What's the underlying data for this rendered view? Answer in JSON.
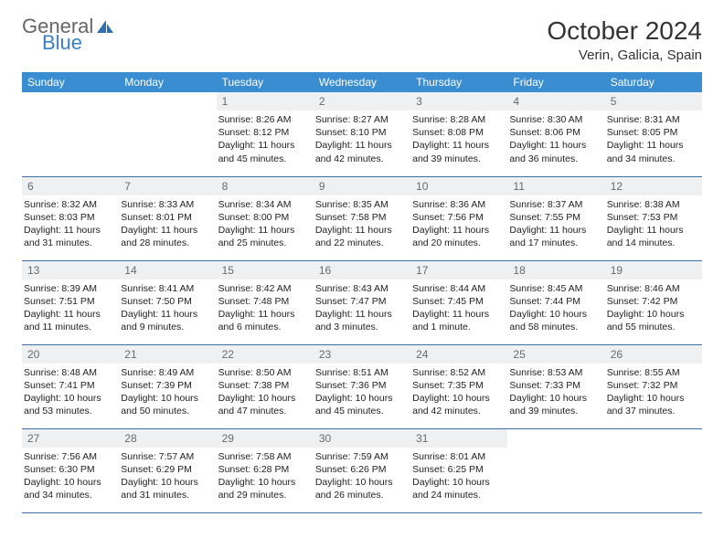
{
  "brand": {
    "part1": "General",
    "part2": "Blue"
  },
  "title": "October 2024",
  "location": "Verin, Galicia, Spain",
  "colors": {
    "header_bg": "#3a8dd0",
    "header_text": "#ffffff",
    "daynum_bg": "#eef0f2",
    "daynum_text": "#6a6a6a",
    "border": "#3a6fa8",
    "logo_accent": "#3a7fc4"
  },
  "day_names": [
    "Sunday",
    "Monday",
    "Tuesday",
    "Wednesday",
    "Thursday",
    "Friday",
    "Saturday"
  ],
  "weeks": [
    [
      {
        "n": "",
        "sunrise": "",
        "sunset": "",
        "daylight": ""
      },
      {
        "n": "",
        "sunrise": "",
        "sunset": "",
        "daylight": ""
      },
      {
        "n": "1",
        "sunrise": "Sunrise: 8:26 AM",
        "sunset": "Sunset: 8:12 PM",
        "daylight": "Daylight: 11 hours and 45 minutes."
      },
      {
        "n": "2",
        "sunrise": "Sunrise: 8:27 AM",
        "sunset": "Sunset: 8:10 PM",
        "daylight": "Daylight: 11 hours and 42 minutes."
      },
      {
        "n": "3",
        "sunrise": "Sunrise: 8:28 AM",
        "sunset": "Sunset: 8:08 PM",
        "daylight": "Daylight: 11 hours and 39 minutes."
      },
      {
        "n": "4",
        "sunrise": "Sunrise: 8:30 AM",
        "sunset": "Sunset: 8:06 PM",
        "daylight": "Daylight: 11 hours and 36 minutes."
      },
      {
        "n": "5",
        "sunrise": "Sunrise: 8:31 AM",
        "sunset": "Sunset: 8:05 PM",
        "daylight": "Daylight: 11 hours and 34 minutes."
      }
    ],
    [
      {
        "n": "6",
        "sunrise": "Sunrise: 8:32 AM",
        "sunset": "Sunset: 8:03 PM",
        "daylight": "Daylight: 11 hours and 31 minutes."
      },
      {
        "n": "7",
        "sunrise": "Sunrise: 8:33 AM",
        "sunset": "Sunset: 8:01 PM",
        "daylight": "Daylight: 11 hours and 28 minutes."
      },
      {
        "n": "8",
        "sunrise": "Sunrise: 8:34 AM",
        "sunset": "Sunset: 8:00 PM",
        "daylight": "Daylight: 11 hours and 25 minutes."
      },
      {
        "n": "9",
        "sunrise": "Sunrise: 8:35 AM",
        "sunset": "Sunset: 7:58 PM",
        "daylight": "Daylight: 11 hours and 22 minutes."
      },
      {
        "n": "10",
        "sunrise": "Sunrise: 8:36 AM",
        "sunset": "Sunset: 7:56 PM",
        "daylight": "Daylight: 11 hours and 20 minutes."
      },
      {
        "n": "11",
        "sunrise": "Sunrise: 8:37 AM",
        "sunset": "Sunset: 7:55 PM",
        "daylight": "Daylight: 11 hours and 17 minutes."
      },
      {
        "n": "12",
        "sunrise": "Sunrise: 8:38 AM",
        "sunset": "Sunset: 7:53 PM",
        "daylight": "Daylight: 11 hours and 14 minutes."
      }
    ],
    [
      {
        "n": "13",
        "sunrise": "Sunrise: 8:39 AM",
        "sunset": "Sunset: 7:51 PM",
        "daylight": "Daylight: 11 hours and 11 minutes."
      },
      {
        "n": "14",
        "sunrise": "Sunrise: 8:41 AM",
        "sunset": "Sunset: 7:50 PM",
        "daylight": "Daylight: 11 hours and 9 minutes."
      },
      {
        "n": "15",
        "sunrise": "Sunrise: 8:42 AM",
        "sunset": "Sunset: 7:48 PM",
        "daylight": "Daylight: 11 hours and 6 minutes."
      },
      {
        "n": "16",
        "sunrise": "Sunrise: 8:43 AM",
        "sunset": "Sunset: 7:47 PM",
        "daylight": "Daylight: 11 hours and 3 minutes."
      },
      {
        "n": "17",
        "sunrise": "Sunrise: 8:44 AM",
        "sunset": "Sunset: 7:45 PM",
        "daylight": "Daylight: 11 hours and 1 minute."
      },
      {
        "n": "18",
        "sunrise": "Sunrise: 8:45 AM",
        "sunset": "Sunset: 7:44 PM",
        "daylight": "Daylight: 10 hours and 58 minutes."
      },
      {
        "n": "19",
        "sunrise": "Sunrise: 8:46 AM",
        "sunset": "Sunset: 7:42 PM",
        "daylight": "Daylight: 10 hours and 55 minutes."
      }
    ],
    [
      {
        "n": "20",
        "sunrise": "Sunrise: 8:48 AM",
        "sunset": "Sunset: 7:41 PM",
        "daylight": "Daylight: 10 hours and 53 minutes."
      },
      {
        "n": "21",
        "sunrise": "Sunrise: 8:49 AM",
        "sunset": "Sunset: 7:39 PM",
        "daylight": "Daylight: 10 hours and 50 minutes."
      },
      {
        "n": "22",
        "sunrise": "Sunrise: 8:50 AM",
        "sunset": "Sunset: 7:38 PM",
        "daylight": "Daylight: 10 hours and 47 minutes."
      },
      {
        "n": "23",
        "sunrise": "Sunrise: 8:51 AM",
        "sunset": "Sunset: 7:36 PM",
        "daylight": "Daylight: 10 hours and 45 minutes."
      },
      {
        "n": "24",
        "sunrise": "Sunrise: 8:52 AM",
        "sunset": "Sunset: 7:35 PM",
        "daylight": "Daylight: 10 hours and 42 minutes."
      },
      {
        "n": "25",
        "sunrise": "Sunrise: 8:53 AM",
        "sunset": "Sunset: 7:33 PM",
        "daylight": "Daylight: 10 hours and 39 minutes."
      },
      {
        "n": "26",
        "sunrise": "Sunrise: 8:55 AM",
        "sunset": "Sunset: 7:32 PM",
        "daylight": "Daylight: 10 hours and 37 minutes."
      }
    ],
    [
      {
        "n": "27",
        "sunrise": "Sunrise: 7:56 AM",
        "sunset": "Sunset: 6:30 PM",
        "daylight": "Daylight: 10 hours and 34 minutes."
      },
      {
        "n": "28",
        "sunrise": "Sunrise: 7:57 AM",
        "sunset": "Sunset: 6:29 PM",
        "daylight": "Daylight: 10 hours and 31 minutes."
      },
      {
        "n": "29",
        "sunrise": "Sunrise: 7:58 AM",
        "sunset": "Sunset: 6:28 PM",
        "daylight": "Daylight: 10 hours and 29 minutes."
      },
      {
        "n": "30",
        "sunrise": "Sunrise: 7:59 AM",
        "sunset": "Sunset: 6:26 PM",
        "daylight": "Daylight: 10 hours and 26 minutes."
      },
      {
        "n": "31",
        "sunrise": "Sunrise: 8:01 AM",
        "sunset": "Sunset: 6:25 PM",
        "daylight": "Daylight: 10 hours and 24 minutes."
      },
      {
        "n": "",
        "sunrise": "",
        "sunset": "",
        "daylight": ""
      },
      {
        "n": "",
        "sunrise": "",
        "sunset": "",
        "daylight": ""
      }
    ]
  ]
}
